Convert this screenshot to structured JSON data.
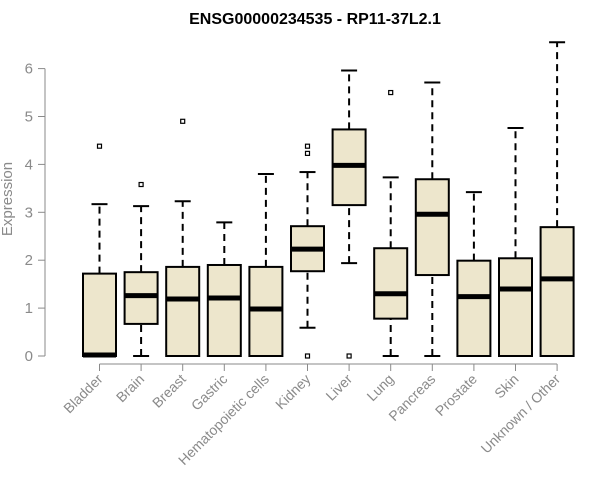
{
  "chart_data": {
    "type": "boxplot",
    "title": "ENSG00000234535 - RP11-37L2.1",
    "xlabel": "",
    "ylabel": "Expression",
    "ylim": [
      0,
      6.6
    ],
    "yticks": [
      0,
      1,
      2,
      3,
      4,
      5,
      6
    ],
    "grid": false,
    "box_color": "#ede6cc",
    "axis_color": "#8a8a8a",
    "categories": [
      "Bladder",
      "Brain",
      "Breast",
      "Gastric",
      "Hematopoietic cells",
      "Kidney",
      "Liver",
      "Lung",
      "Pancreas",
      "Prostate",
      "Skin",
      "Unknown / Other"
    ],
    "boxes": [
      {
        "category": "Bladder",
        "min": 0,
        "q1": 0,
        "median": 0.02,
        "q3": 1.72,
        "max": 3.17,
        "outliers": [
          4.38
        ]
      },
      {
        "category": "Brain",
        "min": 0,
        "q1": 0.67,
        "median": 1.26,
        "q3": 1.75,
        "max": 3.13,
        "outliers": [
          3.58
        ]
      },
      {
        "category": "Breast",
        "min": 0,
        "q1": 0,
        "median": 1.19,
        "q3": 1.86,
        "max": 3.23,
        "outliers": [
          4.9
        ]
      },
      {
        "category": "Gastric",
        "min": 0,
        "q1": 0,
        "median": 1.21,
        "q3": 1.9,
        "max": 2.79,
        "outliers": []
      },
      {
        "category": "Hematopoietic cells",
        "min": 0,
        "q1": 0,
        "median": 0.98,
        "q3": 1.86,
        "max": 3.8,
        "outliers": []
      },
      {
        "category": "Kidney",
        "min": 0.59,
        "q1": 1.77,
        "median": 2.23,
        "q3": 2.71,
        "max": 3.84,
        "outliers": [
          0,
          4.23,
          4.38
        ]
      },
      {
        "category": "Liver",
        "min": 1.94,
        "q1": 3.15,
        "median": 3.98,
        "q3": 4.73,
        "max": 5.96,
        "outliers": [
          0
        ]
      },
      {
        "category": "Lung",
        "min": 0,
        "q1": 0.78,
        "median": 1.3,
        "q3": 2.25,
        "max": 3.73,
        "outliers": [
          5.5
        ]
      },
      {
        "category": "Pancreas",
        "min": 0,
        "q1": 1.69,
        "median": 2.96,
        "q3": 3.69,
        "max": 5.71,
        "outliers": []
      },
      {
        "category": "Prostate",
        "min": 0,
        "q1": 0,
        "median": 1.24,
        "q3": 1.99,
        "max": 3.42,
        "outliers": []
      },
      {
        "category": "Skin",
        "min": 0,
        "q1": 0,
        "median": 1.4,
        "q3": 2.04,
        "max": 4.76,
        "outliers": []
      },
      {
        "category": "Unknown / Other",
        "min": 0,
        "q1": 0,
        "median": 1.61,
        "q3": 2.69,
        "max": 6.55,
        "outliers": []
      }
    ]
  }
}
